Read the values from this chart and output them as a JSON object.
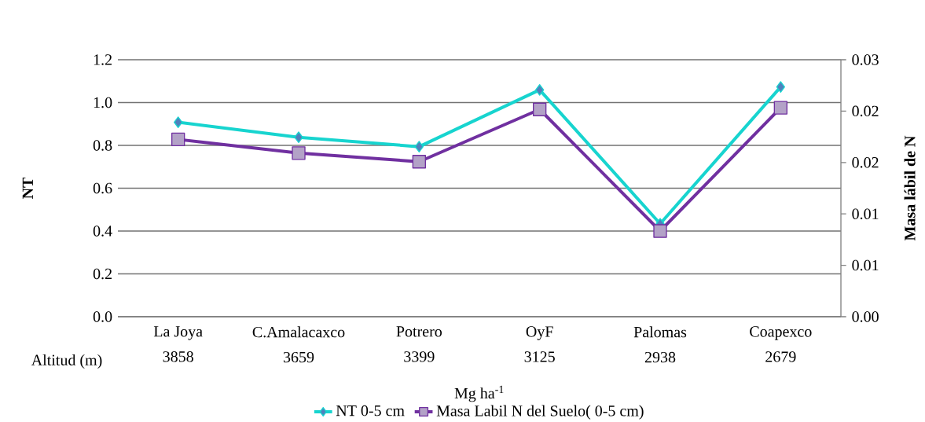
{
  "chart_data": {
    "type": "line",
    "categories": [
      "La Joya",
      "C.Amalacaxco",
      "Potrero",
      "OyF",
      "Palomas",
      "Coapexco"
    ],
    "series": [
      {
        "name": "NT 0-5 cm",
        "color": "#17d4cf",
        "marker": "diamond",
        "values": [
          0.908,
          0.838,
          0.794,
          1.059,
          0.434,
          1.073
        ]
      },
      {
        "name": "Masa Labil N del Suelo( 0-5 cm)",
        "color": "#7030a0",
        "marker": "square",
        "axis": "y2",
        "values": [
          0.0207,
          0.0191,
          0.0181,
          0.0242,
          0.01,
          0.0244
        ]
      }
    ],
    "xlabel": "Mg ha$^{-1}$",
    "ylabel": "NT",
    "y2label": "Masa lábil de N",
    "annotations": [
      "Altitud (m)",
      "3858",
      "3659",
      "3399",
      "3125",
      "2938",
      "2679"
    ],
    "ylim": [
      0,
      1.2
    ],
    "yticks": [
      {
        "value": 0,
        "label": "0.0"
      },
      {
        "value": 0.2,
        "label": "0.2"
      },
      {
        "value": 0.4,
        "label": "0.4"
      },
      {
        "value": 0.6,
        "label": "0.6"
      },
      {
        "value": 0.8,
        "label": "0.8"
      },
      {
        "value": 1.0,
        "label": "1.0"
      },
      {
        "value": 1.2,
        "label": "1.2"
      }
    ],
    "y2lim": [
      0,
      0.03
    ],
    "y2ticks": [
      {
        "value": 0,
        "label": "0.00"
      },
      {
        "value": 0.006,
        "label": "0.01"
      },
      {
        "value": 0.012,
        "label": "0.01"
      },
      {
        "value": 0.018,
        "label": "0.02"
      },
      {
        "value": 0.024,
        "label": "0.02"
      },
      {
        "value": 0.03,
        "label": "0.03"
      }
    ],
    "grid": "y",
    "legend": "bottom",
    "line_style": "solid"
  }
}
